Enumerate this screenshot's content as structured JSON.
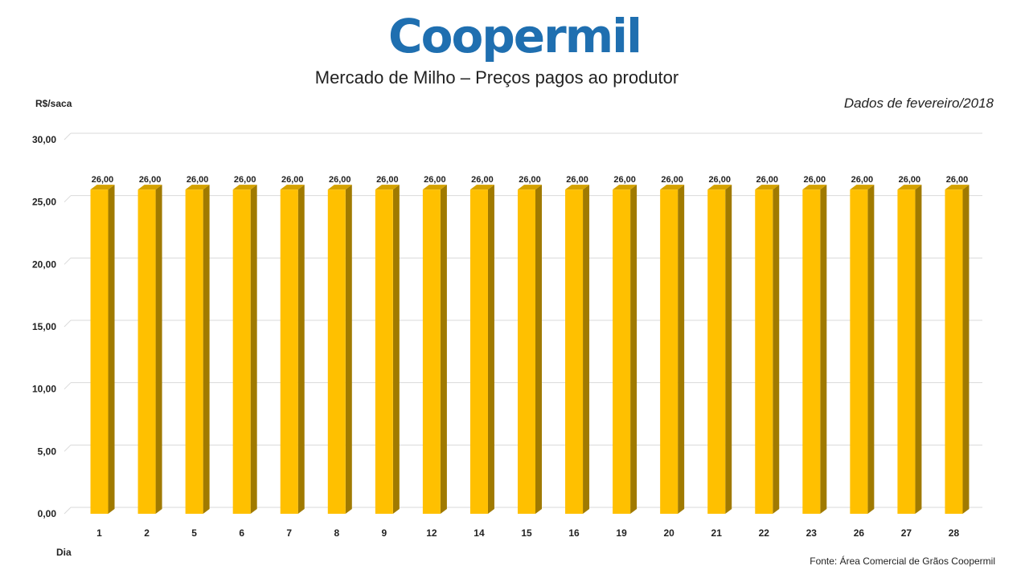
{
  "logo_text": "Coopermil",
  "chart_data": {
    "type": "bar",
    "title": "Mercado de Milho – Preços pagos ao produtor",
    "subtitle": "Dados de fevereiro/2018",
    "ylabel": "R$/saca",
    "xlabel": "Dia",
    "ylim": [
      0,
      30
    ],
    "yticks": [
      "0,00",
      "5,00",
      "10,00",
      "15,00",
      "20,00",
      "25,00",
      "30,00"
    ],
    "grid": true,
    "categories": [
      "1",
      "2",
      "5",
      "6",
      "7",
      "8",
      "9",
      "12",
      "14",
      "15",
      "16",
      "19",
      "20",
      "21",
      "22",
      "23",
      "26",
      "27",
      "28"
    ],
    "values": [
      26,
      26,
      26,
      26,
      26,
      26,
      26,
      26,
      26,
      26,
      26,
      26,
      26,
      26,
      26,
      26,
      26,
      26,
      26
    ],
    "value_labels": [
      "26,00",
      "26,00",
      "26,00",
      "26,00",
      "26,00",
      "26,00",
      "26,00",
      "26,00",
      "26,00",
      "26,00",
      "26,00",
      "26,00",
      "26,00",
      "26,00",
      "26,00",
      "26,00",
      "26,00",
      "26,00",
      "26,00"
    ],
    "colors": {
      "bar_front": "#ffc000",
      "bar_side": "#a07a00",
      "bar_top": "#d4a100",
      "grid": "#d9d9d9"
    }
  },
  "source": "Fonte:  Área Comercial de Grãos Coopermil"
}
